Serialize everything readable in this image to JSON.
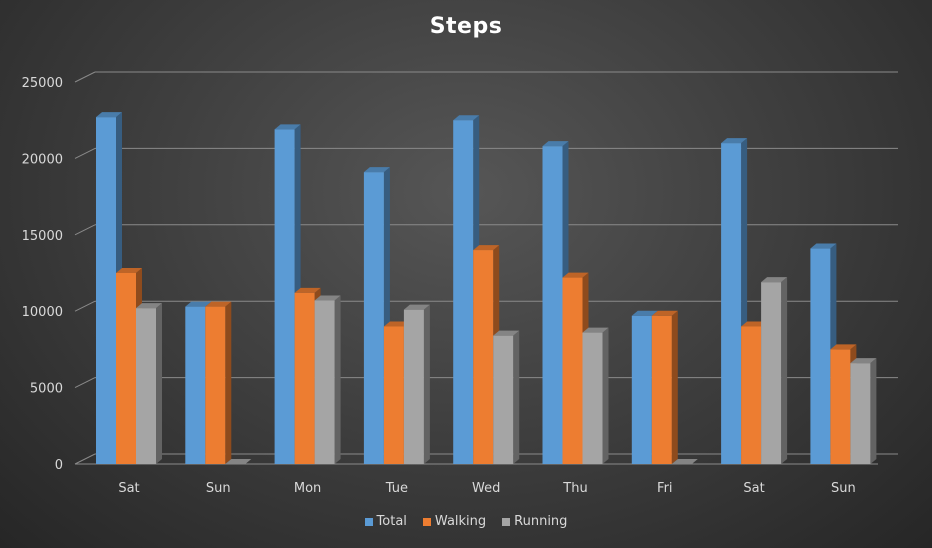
{
  "chart_data": {
    "type": "bar",
    "title": "Steps",
    "categories": [
      "Sat",
      "Sun",
      "Mon",
      "Tue",
      "Wed",
      "Thu",
      "Fri",
      "Sat",
      "Sun"
    ],
    "series": [
      {
        "name": "Total",
        "color": "#5b9bd5",
        "values": [
          22700,
          10300,
          21900,
          19100,
          22500,
          20800,
          9700,
          21000,
          14100
        ]
      },
      {
        "name": "Walking",
        "color": "#ed7d31",
        "values": [
          12500,
          10300,
          11200,
          9000,
          14000,
          12200,
          9700,
          9000,
          7500
        ]
      },
      {
        "name": "Running",
        "color": "#a5a5a5",
        "values": [
          10200,
          0,
          10700,
          10100,
          8400,
          8600,
          0,
          11900,
          6600
        ]
      }
    ],
    "yticks": [
      "0",
      "5000",
      "10000",
      "15000",
      "20000",
      "25000"
    ],
    "ylim": [
      0,
      25000
    ],
    "xlabel": "",
    "ylabel": "",
    "grid": true,
    "legend_position": "bottom"
  }
}
